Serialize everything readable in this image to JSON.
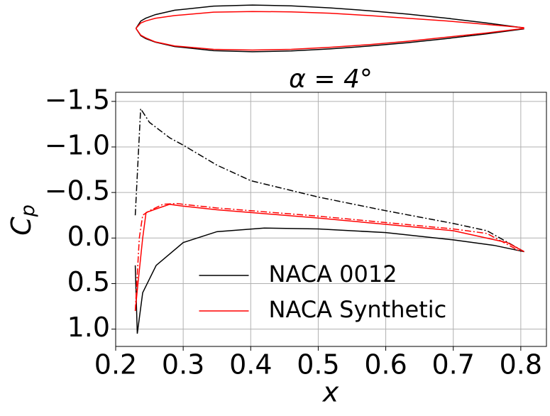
{
  "chart_data": [
    {
      "type": "outline",
      "series": [
        {
          "color": "#000000",
          "x": [
            0.23,
            0.2372,
            0.2444,
            0.2588,
            0.2875,
            0.345,
            0.4025,
            0.46,
            0.5175,
            0.575,
            0.6325,
            0.69,
            0.7475,
            0.805
          ],
          "upper": [
            0,
            0.0109,
            0.015,
            0.0204,
            0.0269,
            0.033,
            0.0345,
            0.0334,
            0.0304,
            0.0262,
            0.0211,
            0.0151,
            0.0083,
            0.0007
          ],
          "lower": [
            0,
            -0.0109,
            -0.015,
            -0.0204,
            -0.0269,
            -0.033,
            -0.0345,
            -0.0334,
            -0.0304,
            -0.0262,
            -0.0211,
            -0.0151,
            -0.0083,
            -0.0007
          ]
        },
        {
          "color": "#ff0000",
          "x": [
            0.23,
            0.2372,
            0.2444,
            0.2588,
            0.2875,
            0.345,
            0.4025,
            0.46,
            0.5175,
            0.575,
            0.6325,
            0.69,
            0.7475,
            0.805
          ],
          "upper": [
            0,
            0.008,
            0.011,
            0.015,
            0.019,
            0.024,
            0.025,
            0.0245,
            0.0225,
            0.019,
            0.015,
            0.011,
            0.006,
            0.001
          ],
          "lower": [
            0,
            -0.01,
            -0.014,
            -0.02,
            -0.026,
            -0.031,
            -0.032,
            -0.031,
            -0.028,
            -0.024,
            -0.019,
            -0.013,
            -0.007,
            0
          ]
        }
      ]
    },
    {
      "type": "line",
      "title": "α = 4°",
      "xlabel": "x",
      "ylabel": [
        "C",
        "p"
      ],
      "xlim": [
        0.2,
        0.838
      ],
      "ylim": [
        1.19,
        -1.6
      ],
      "xticks": [
        0.2,
        0.3,
        0.4,
        0.5,
        0.6,
        0.7,
        0.8
      ],
      "yticks": [
        {
          "value": -1.5,
          "label": "−1.5"
        },
        {
          "value": -1.0,
          "label": "−1.0"
        },
        {
          "value": -0.5,
          "label": "−0.5"
        },
        {
          "value": 0,
          "label": "0.0"
        },
        0.5,
        {
          "value": 1.0,
          "label": "1.0"
        }
      ],
      "grid": true,
      "legend": "lower center",
      "series": [
        {
          "name": "NACA 0012",
          "color": "#000000",
          "dash": "solid",
          "x": [
            0.229,
            0.232,
            0.24,
            0.26,
            0.3,
            0.35,
            0.42,
            0.5,
            0.6,
            0.7,
            0.76,
            0.805
          ],
          "values": [
            0.3,
            1.05,
            0.6,
            0.3,
            0.05,
            -0.07,
            -0.11,
            -0.1,
            -0.06,
            0.02,
            0.08,
            0.15
          ]
        },
        {
          "color": "#000000",
          "dash": "dashdot",
          "x": [
            0.229,
            0.237,
            0.25,
            0.28,
            0.3,
            0.35,
            0.4,
            0.5,
            0.6,
            0.7,
            0.75,
            0.805
          ],
          "values": [
            -0.25,
            -1.42,
            -1.27,
            -1.1,
            -1.02,
            -0.8,
            -0.63,
            -0.45,
            -0.3,
            -0.16,
            -0.08,
            0.15
          ]
        },
        {
          "name": "NACA Synthetic",
          "color": "#ff0000",
          "dash": "solid",
          "x": [
            0.229,
            0.233,
            0.24,
            0.245,
            0.26,
            0.28,
            0.3,
            0.35,
            0.4,
            0.5,
            0.6,
            0.7,
            0.78,
            0.805
          ],
          "values": [
            0.8,
            0.5,
            0.0,
            -0.28,
            -0.32,
            -0.37,
            -0.35,
            -0.31,
            -0.28,
            -0.22,
            -0.15,
            -0.08,
            0.05,
            0.15
          ]
        },
        {
          "color": "#ff0000",
          "dash": "dashdot",
          "x": [
            0.229,
            0.235,
            0.24,
            0.25,
            0.27,
            0.29,
            0.3,
            0.35,
            0.4,
            0.5,
            0.6,
            0.7,
            0.75,
            0.8
          ],
          "values": [
            0.8,
            0,
            -0.25,
            -0.3,
            -0.37,
            -0.38,
            -0.37,
            -0.33,
            -0.3,
            -0.24,
            -0.17,
            -0.1,
            -0.05,
            0.15
          ]
        }
      ]
    }
  ]
}
